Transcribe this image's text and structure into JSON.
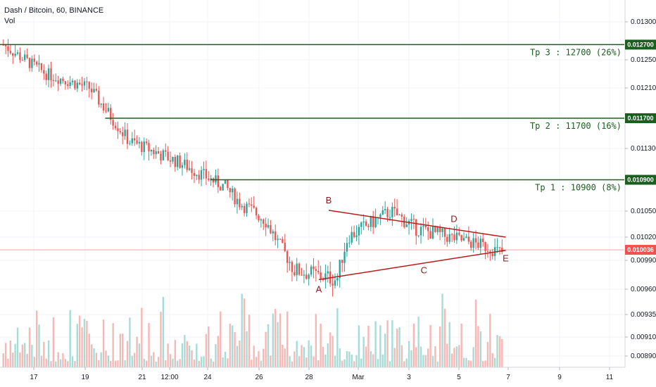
{
  "header": {
    "symbol_line": "Dash / Bitcoin, 60, BINANCE",
    "volume_label": "Vol"
  },
  "colors": {
    "up": "#26a69a",
    "down": "#ef5350",
    "target": "#1b5e20",
    "pattern": "#b71c1c",
    "current_price": "#ef5350",
    "volume_up": "#a7dcd6",
    "volume_down": "#f7b7b5"
  },
  "chart_data": {
    "type": "candlestick",
    "series_name": "Dash / Bitcoin",
    "interval": "60",
    "exchange": "BINANCE",
    "y_axis": {
      "scale": "linear",
      "ylim": [
        0.00875,
        0.0135
      ],
      "tick_labels": [
        "0.013000",
        "0.012500",
        "0.012100",
        "0.011300",
        "0.010500",
        "0.010200",
        "0.009900",
        "0.009600",
        "0.009350",
        "0.009100",
        "0.008900"
      ],
      "tick_values": [
        0.013,
        0.0125,
        0.0121,
        0.0113,
        0.0105,
        0.0102,
        0.0099,
        0.0096,
        0.00935,
        0.0091,
        0.0089
      ]
    },
    "x_axis": {
      "tick_labels": [
        "17",
        "19",
        "21",
        "12:00",
        "24",
        "26",
        "28",
        "Mar",
        "3",
        "5",
        "7",
        "9",
        "11"
      ],
      "tick_index": [
        0,
        2,
        4,
        5,
        6,
        8,
        10,
        11,
        12,
        13,
        14,
        15,
        16
      ],
      "grid": true
    },
    "price_path": [
      [
        0,
        0.0127
      ],
      [
        1.2,
        0.0123
      ],
      [
        2.4,
        0.0121
      ],
      [
        3.5,
        0.0114
      ],
      [
        5.0,
        0.0111
      ],
      [
        6.2,
        0.0108
      ],
      [
        6.6,
        0.0106
      ],
      [
        7.3,
        0.0104
      ],
      [
        8.1,
        0.0098
      ],
      [
        9.3,
        0.0097
      ],
      [
        9.6,
        0.0102
      ],
      [
        10.8,
        0.0105
      ],
      [
        11.5,
        0.0103
      ],
      [
        12.4,
        0.0102
      ],
      [
        13.3,
        0.0101
      ],
      [
        13.9,
        0.01
      ]
    ],
    "candles_count": 210,
    "current_price": {
      "value": 0.010036,
      "label": "0.010036"
    },
    "targets": [
      {
        "name": "Tp 1",
        "value": 0.0109,
        "label": "Tp 1 : 10900 (8%)",
        "badge": "0.010900",
        "start_index": 6.1
      },
      {
        "name": "Tp 2",
        "value": 0.0117,
        "label": "Tp 2 : 11700 (16%)",
        "badge": "0.011700",
        "start_index": 2.7
      },
      {
        "name": "Tp 3",
        "value": 0.0127,
        "label": "Tp 3 : 12700 (26%)",
        "badge": "0.012700",
        "start_index": 0
      }
    ],
    "pattern_points": [
      {
        "label": "A",
        "x_index": 10.2,
        "value": 0.0097
      },
      {
        "label": "B",
        "x_index": 10.4,
        "value": 0.01051
      },
      {
        "label": "C",
        "x_index": 12.3,
        "value": 0.00988
      },
      {
        "label": "D",
        "x_index": 12.9,
        "value": 0.01031
      },
      {
        "label": "E",
        "x_index": 13.95,
        "value": 0.01003
      }
    ],
    "pattern_lines": [
      {
        "from": [
          10.2,
          0.0097
        ],
        "to": [
          13.95,
          0.01003
        ]
      },
      {
        "from": [
          10.4,
          0.01051
        ],
        "to": [
          13.95,
          0.0102
        ]
      }
    ],
    "volume": true,
    "legend": "none"
  }
}
